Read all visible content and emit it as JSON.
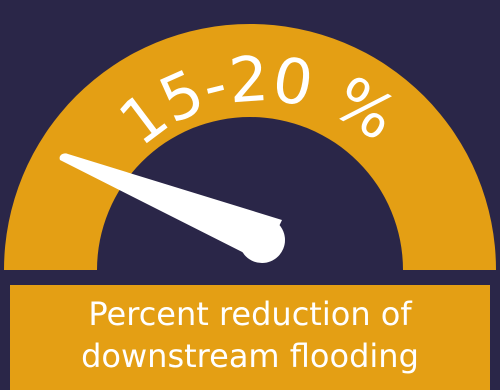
{
  "gauge": {
    "value_label": "15-20 %",
    "colors": {
      "background": "#2a2648",
      "arc": "#e49f14",
      "needle": "#ffffff",
      "text": "#ffffff"
    }
  },
  "caption": {
    "line1": "Percent reduction of",
    "line2": "downstream flooding"
  }
}
